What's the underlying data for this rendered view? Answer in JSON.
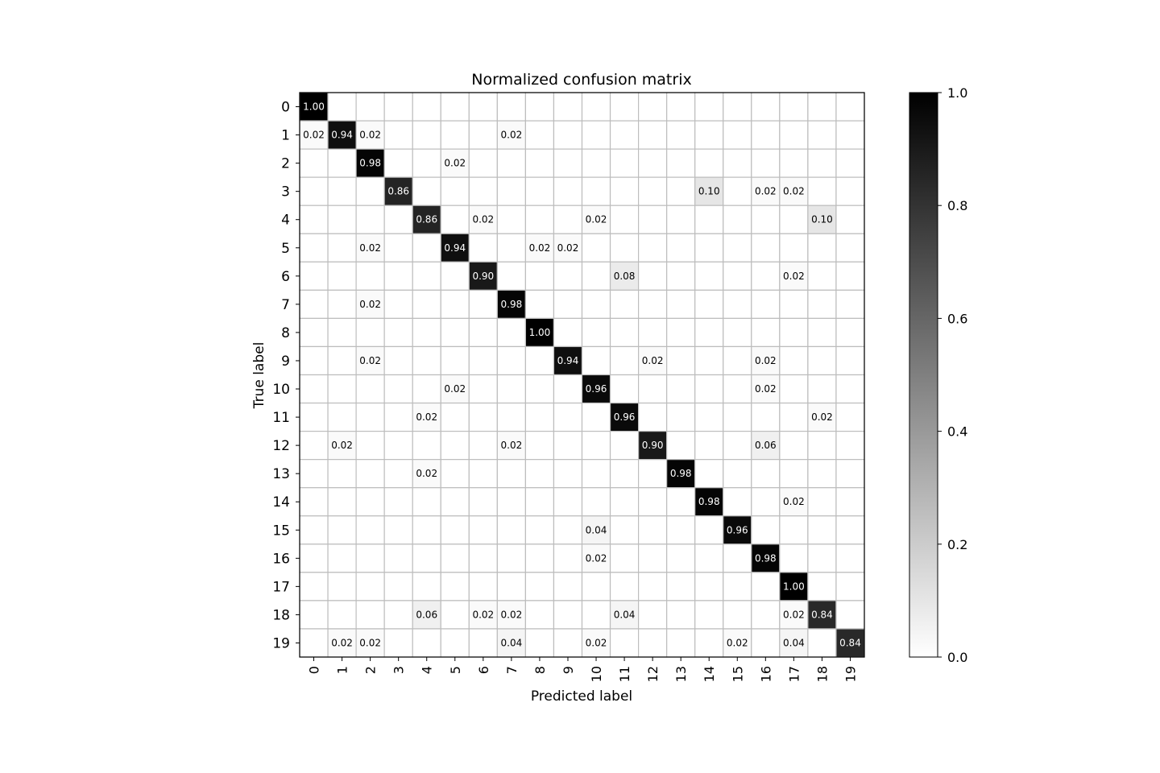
{
  "chart_data": {
    "type": "heatmap",
    "title": "Normalized confusion matrix",
    "xlabel": "Predicted label",
    "ylabel": "True label",
    "x_categories": [
      "0",
      "1",
      "2",
      "3",
      "4",
      "5",
      "6",
      "7",
      "8",
      "9",
      "10",
      "11",
      "12",
      "13",
      "14",
      "15",
      "16",
      "17",
      "18",
      "19"
    ],
    "y_categories": [
      "0",
      "1",
      "2",
      "3",
      "4",
      "5",
      "6",
      "7",
      "8",
      "9",
      "10",
      "11",
      "12",
      "13",
      "14",
      "15",
      "16",
      "17",
      "18",
      "19"
    ],
    "value_range": [
      0,
      1
    ],
    "colormap": "white-to-black",
    "colorbar": {
      "ticks": [
        0.0,
        0.2,
        0.4,
        0.6,
        0.8,
        1.0
      ],
      "tick_labels": [
        "0.0",
        "0.2",
        "0.4",
        "0.6",
        "0.8",
        "1.0"
      ]
    },
    "grid": true,
    "values": [
      [
        1.0,
        0,
        0,
        0,
        0,
        0,
        0,
        0,
        0,
        0,
        0,
        0,
        0,
        0,
        0,
        0,
        0,
        0,
        0,
        0
      ],
      [
        0.02,
        0.94,
        0.02,
        0,
        0,
        0,
        0,
        0.02,
        0,
        0,
        0,
        0,
        0,
        0,
        0,
        0,
        0,
        0,
        0,
        0
      ],
      [
        0,
        0,
        0.98,
        0,
        0,
        0.02,
        0,
        0,
        0,
        0,
        0,
        0,
        0,
        0,
        0,
        0,
        0,
        0,
        0,
        0
      ],
      [
        0,
        0,
        0,
        0.86,
        0,
        0,
        0,
        0,
        0,
        0,
        0,
        0,
        0,
        0,
        0.1,
        0,
        0.02,
        0.02,
        0,
        0
      ],
      [
        0,
        0,
        0,
        0,
        0.86,
        0,
        0.02,
        0,
        0,
        0,
        0.02,
        0,
        0,
        0,
        0,
        0,
        0,
        0,
        0.1,
        0
      ],
      [
        0,
        0,
        0.02,
        0,
        0,
        0.94,
        0,
        0,
        0.02,
        0.02,
        0,
        0,
        0,
        0,
        0,
        0,
        0,
        0,
        0,
        0
      ],
      [
        0,
        0,
        0,
        0,
        0,
        0,
        0.9,
        0,
        0,
        0,
        0,
        0.08,
        0,
        0,
        0,
        0,
        0,
        0.02,
        0,
        0
      ],
      [
        0,
        0,
        0.02,
        0,
        0,
        0,
        0,
        0.98,
        0,
        0,
        0,
        0,
        0,
        0,
        0,
        0,
        0,
        0,
        0,
        0
      ],
      [
        0,
        0,
        0,
        0,
        0,
        0,
        0,
        0,
        1.0,
        0,
        0,
        0,
        0,
        0,
        0,
        0,
        0,
        0,
        0,
        0
      ],
      [
        0,
        0,
        0.02,
        0,
        0,
        0,
        0,
        0,
        0,
        0.94,
        0,
        0,
        0.02,
        0,
        0,
        0,
        0.02,
        0,
        0,
        0
      ],
      [
        0,
        0,
        0,
        0,
        0,
        0.02,
        0,
        0,
        0,
        0,
        0.96,
        0,
        0,
        0,
        0,
        0,
        0.02,
        0,
        0,
        0
      ],
      [
        0,
        0,
        0,
        0,
        0.02,
        0,
        0,
        0,
        0,
        0,
        0,
        0.96,
        0,
        0,
        0,
        0,
        0,
        0,
        0.02,
        0
      ],
      [
        0,
        0.02,
        0,
        0,
        0,
        0,
        0,
        0.02,
        0,
        0,
        0,
        0,
        0.9,
        0,
        0,
        0,
        0.06,
        0,
        0,
        0
      ],
      [
        0,
        0,
        0,
        0,
        0.02,
        0,
        0,
        0,
        0,
        0,
        0,
        0,
        0,
        0.98,
        0,
        0,
        0,
        0,
        0,
        0
      ],
      [
        0,
        0,
        0,
        0,
        0,
        0,
        0,
        0,
        0,
        0,
        0,
        0,
        0,
        0,
        0.98,
        0,
        0,
        0.02,
        0,
        0
      ],
      [
        0,
        0,
        0,
        0,
        0,
        0,
        0,
        0,
        0,
        0,
        0.04,
        0,
        0,
        0,
        0,
        0.96,
        0,
        0,
        0,
        0
      ],
      [
        0,
        0,
        0,
        0,
        0,
        0,
        0,
        0,
        0,
        0,
        0.02,
        0,
        0,
        0,
        0,
        0,
        0.98,
        0,
        0,
        0
      ],
      [
        0,
        0,
        0,
        0,
        0,
        0,
        0,
        0,
        0,
        0,
        0,
        0,
        0,
        0,
        0,
        0,
        0,
        1.0,
        0,
        0
      ],
      [
        0,
        0,
        0,
        0,
        0.06,
        0,
        0.02,
        0.02,
        0,
        0,
        0,
        0.04,
        0,
        0,
        0,
        0,
        0,
        0.02,
        0.84,
        0
      ],
      [
        0,
        0.02,
        0.02,
        0,
        0,
        0,
        0,
        0.04,
        0,
        0,
        0.02,
        0,
        0,
        0,
        0,
        0.02,
        0,
        0.04,
        0,
        0.84
      ]
    ]
  }
}
